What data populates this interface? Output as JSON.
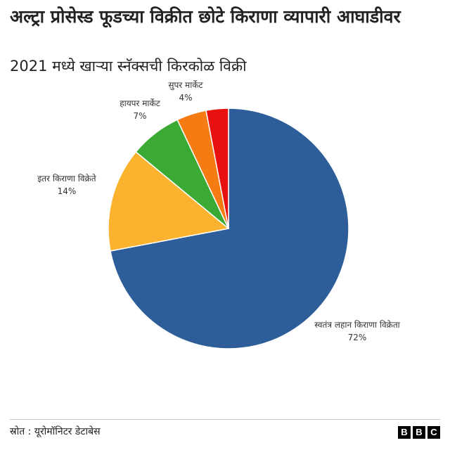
{
  "header": {
    "title": "अल्ट्रा प्रोसेस्ड फूडच्या विक्रीत छोटे किराणा व्यापारी आघाडीवर",
    "subtitle": "2021 मध्ये खाऱ्या स्नॅक्सची किरकोळ विक्री"
  },
  "footer": {
    "source": "स्रोत : यूरोमॉनिटर डेटाबेस",
    "logo": [
      "B",
      "B",
      "C"
    ]
  },
  "chart_data": {
    "type": "pie",
    "start": "12 o'clock",
    "direction": "clockwise",
    "slices": [
      {
        "label": "स्वतंत्र लहान किराणा विक्रेता",
        "value": 72,
        "value_label": "72%",
        "color": "#2d5e99"
      },
      {
        "label": "इतर किराणा विक्रेते",
        "value": 14,
        "value_label": "14%",
        "color": "#fbb22f"
      },
      {
        "label": "हायपर मार्केट",
        "value": 7,
        "value_label": "7%",
        "color": "#3aaa35"
      },
      {
        "label": "सुपर मार्केट",
        "value": 4,
        "value_label": "4%",
        "color": "#f57c12"
      },
      {
        "label": "",
        "value": 3,
        "value_label": "",
        "color": "#e8110f"
      }
    ]
  }
}
